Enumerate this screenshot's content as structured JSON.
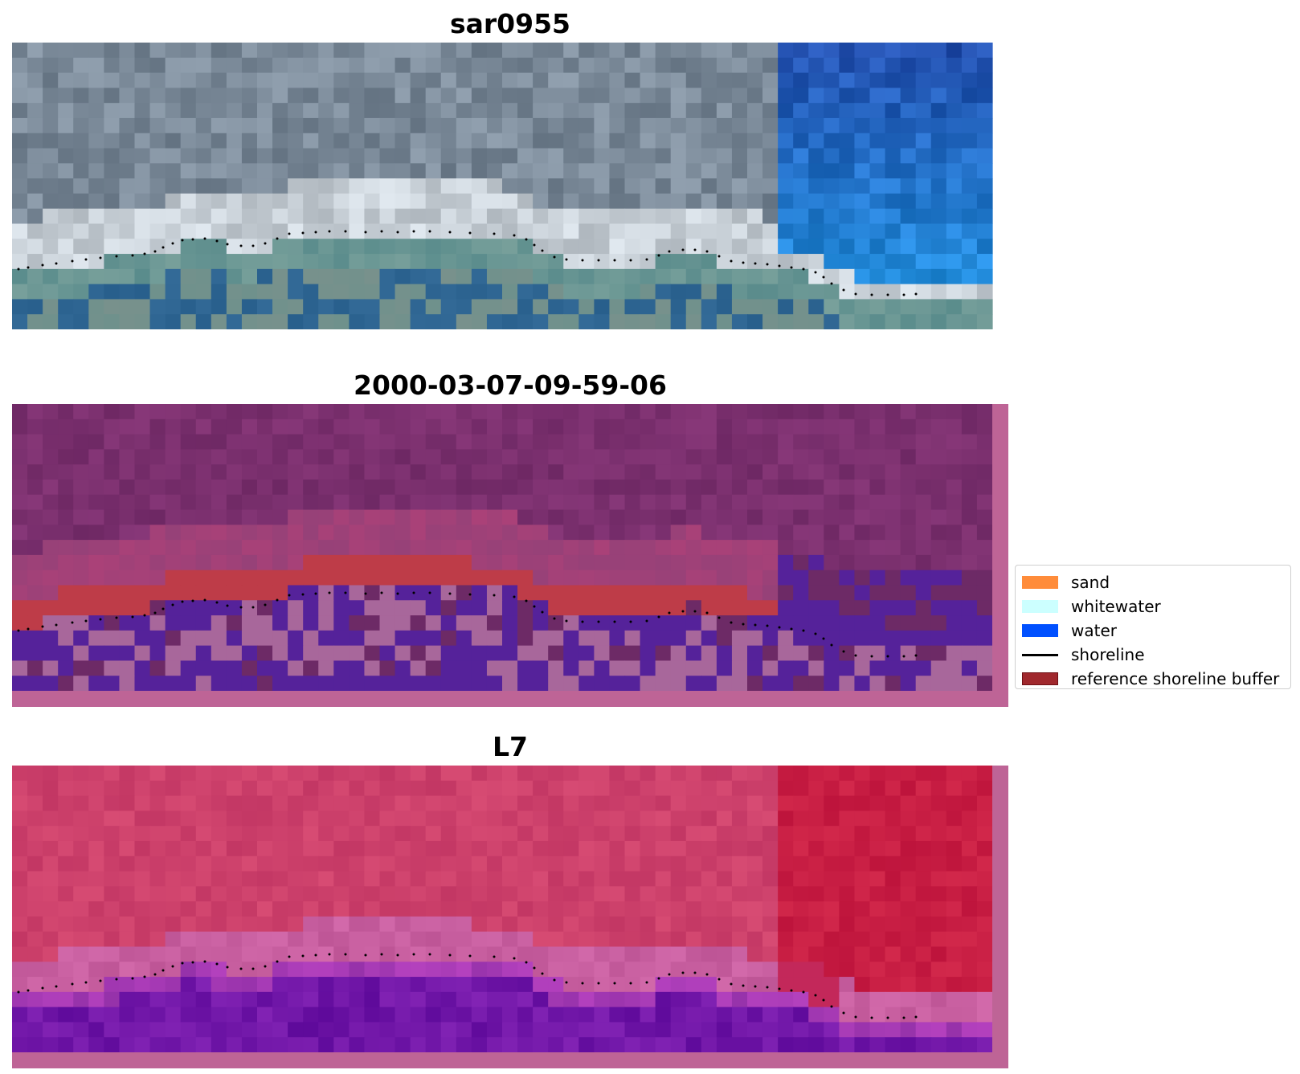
{
  "panels": [
    {
      "title": "sar0955",
      "style": "rgb"
    },
    {
      "title": "2000-03-07-09-59-06",
      "style": "class"
    },
    {
      "title": "L7",
      "style": "false-color"
    }
  ],
  "legend": [
    {
      "label": "sand",
      "kind": "patch",
      "color": "#ff8c3a"
    },
    {
      "label": "whitewater",
      "kind": "patch",
      "color": "#ccffff"
    },
    {
      "label": "water",
      "kind": "patch",
      "color": "#0050ff"
    },
    {
      "label": "shoreline",
      "kind": "line",
      "color": "#000000"
    },
    {
      "label": "reference shoreline buffer",
      "kind": "patch",
      "color": "#a0282d",
      "edge": "#6e0f14"
    }
  ],
  "colors": {
    "border_pink": "#be6496",
    "buffer_red": "#be3c48",
    "water_purple": "#55229a",
    "light_pink": "#a8679b",
    "dark_magenta": "#6d2a66",
    "shoreline": "#000000"
  }
}
